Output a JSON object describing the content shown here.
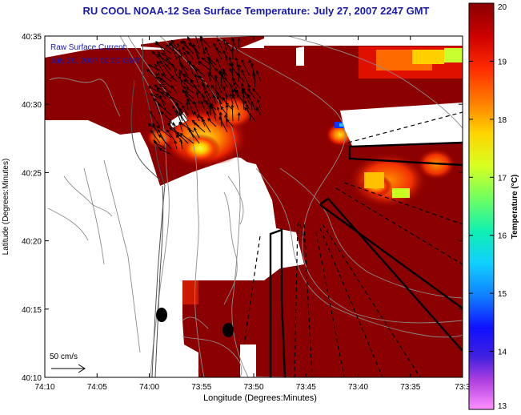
{
  "title": "RU COOL  NOAA-12  Sea Surface Temperature:  July 27, 2007 2247 GMT",
  "map": {
    "xlabel": "Longitude (Degrees:Minutes)",
    "ylabel": "Latitude (Degrees:Minutes)",
    "x_ticks": [
      "74:10",
      "74:05",
      "74:00",
      "73:55",
      "73:50",
      "73:45",
      "73:40",
      "73:35",
      "73:3"
    ],
    "y_ticks": [
      "40:35",
      "40:30",
      "40:25",
      "40:20",
      "40:15",
      "40:10"
    ],
    "current_label_line1": "Raw Surface Current:",
    "current_label_line2": "July 26, 2007 00:00 GMT",
    "scale_label": "50 cm/s",
    "colors": {
      "warm": "#8b0000",
      "land": "#ffffff",
      "contour": "#8c8c8c"
    }
  },
  "colorbar": {
    "label": "Temperature (°C)",
    "ticks": [
      "20",
      "19",
      "18",
      "17",
      "16",
      "15",
      "14",
      "13"
    ],
    "range": [
      13,
      20
    ]
  }
}
